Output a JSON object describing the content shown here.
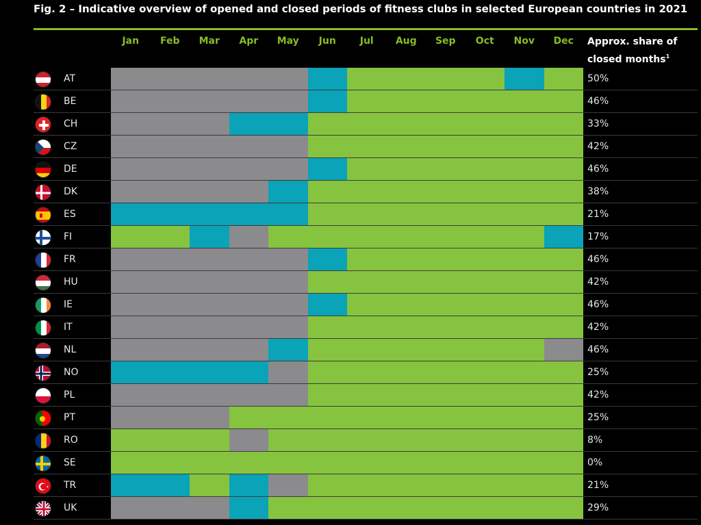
{
  "chart_data": {
    "type": "heatmap",
    "title": "Fig. 2 – Indicative overview of opened and closed periods of fitness clubs in selected European countries in 2021",
    "months": [
      "Jan",
      "Feb",
      "Mar",
      "Apr",
      "May",
      "Jun",
      "Jul",
      "Aug",
      "Sep",
      "Oct",
      "Nov",
      "Dec"
    ],
    "share_header_line1": "Approx. share of",
    "share_header_line2": "closed months",
    "share_header_note": "1",
    "status_colors": {
      "closed": "#8b8b8d",
      "partially_open": "#0aa3b8",
      "open": "#86c440"
    },
    "countries": [
      {
        "code": "AT",
        "flag": "at",
        "share": "50%",
        "segments": [
          [
            "closed",
            0,
            5
          ],
          [
            "partially_open",
            5,
            6
          ],
          [
            "open",
            6,
            10
          ],
          [
            "partially_open",
            10,
            11
          ],
          [
            "open",
            11,
            12
          ]
        ]
      },
      {
        "code": "BE",
        "flag": "be",
        "share": "46%",
        "segments": [
          [
            "closed",
            0,
            5
          ],
          [
            "partially_open",
            5,
            6
          ],
          [
            "open",
            6,
            12
          ]
        ]
      },
      {
        "code": "CH",
        "flag": "ch",
        "share": "33%",
        "segments": [
          [
            "closed",
            0,
            3
          ],
          [
            "partially_open",
            3,
            5
          ],
          [
            "open",
            5,
            12
          ]
        ]
      },
      {
        "code": "CZ",
        "flag": "cz",
        "share": "42%",
        "segments": [
          [
            "closed",
            0,
            5
          ],
          [
            "open",
            5,
            12
          ]
        ]
      },
      {
        "code": "DE",
        "flag": "de",
        "share": "46%",
        "segments": [
          [
            "closed",
            0,
            5
          ],
          [
            "partially_open",
            5,
            6
          ],
          [
            "open",
            6,
            12
          ]
        ]
      },
      {
        "code": "DK",
        "flag": "dk",
        "share": "38%",
        "segments": [
          [
            "closed",
            0,
            4
          ],
          [
            "partially_open",
            4,
            5
          ],
          [
            "open",
            5,
            12
          ]
        ]
      },
      {
        "code": "ES",
        "flag": "es",
        "share": "21%",
        "segments": [
          [
            "partially_open",
            0,
            5
          ],
          [
            "open",
            5,
            12
          ]
        ]
      },
      {
        "code": "FI",
        "flag": "fi",
        "share": "17%",
        "segments": [
          [
            "open",
            0,
            2
          ],
          [
            "partially_open",
            2,
            3
          ],
          [
            "closed",
            3,
            4
          ],
          [
            "open",
            4,
            11
          ],
          [
            "partially_open",
            11,
            12
          ]
        ]
      },
      {
        "code": "FR",
        "flag": "fr",
        "share": "46%",
        "segments": [
          [
            "closed",
            0,
            5
          ],
          [
            "partially_open",
            5,
            6
          ],
          [
            "open",
            6,
            12
          ]
        ]
      },
      {
        "code": "HU",
        "flag": "hu",
        "share": "42%",
        "segments": [
          [
            "closed",
            0,
            5
          ],
          [
            "open",
            5,
            12
          ]
        ]
      },
      {
        "code": "IE",
        "flag": "ie",
        "share": "46%",
        "segments": [
          [
            "closed",
            0,
            5
          ],
          [
            "partially_open",
            5,
            6
          ],
          [
            "open",
            6,
            12
          ]
        ]
      },
      {
        "code": "IT",
        "flag": "it",
        "share": "42%",
        "segments": [
          [
            "closed",
            0,
            5
          ],
          [
            "open",
            5,
            12
          ]
        ]
      },
      {
        "code": "NL",
        "flag": "nl",
        "share": "46%",
        "segments": [
          [
            "closed",
            0,
            4
          ],
          [
            "partially_open",
            4,
            5
          ],
          [
            "open",
            5,
            11
          ],
          [
            "closed",
            11,
            12
          ]
        ]
      },
      {
        "code": "NO",
        "flag": "no",
        "share": "25%",
        "segments": [
          [
            "partially_open",
            0,
            4
          ],
          [
            "closed",
            4,
            5
          ],
          [
            "open",
            5,
            12
          ]
        ]
      },
      {
        "code": "PL",
        "flag": "pl",
        "share": "42%",
        "segments": [
          [
            "closed",
            0,
            5
          ],
          [
            "open",
            5,
            12
          ]
        ]
      },
      {
        "code": "PT",
        "flag": "pt",
        "share": "25%",
        "segments": [
          [
            "closed",
            0,
            3
          ],
          [
            "open",
            3,
            12
          ]
        ]
      },
      {
        "code": "RO",
        "flag": "ro",
        "share": "8%",
        "segments": [
          [
            "open",
            0,
            3
          ],
          [
            "closed",
            3,
            4
          ],
          [
            "open",
            4,
            12
          ]
        ]
      },
      {
        "code": "SE",
        "flag": "se",
        "share": "0%",
        "segments": [
          [
            "open",
            0,
            12
          ]
        ]
      },
      {
        "code": "TR",
        "flag": "tr",
        "share": "21%",
        "segments": [
          [
            "partially_open",
            0,
            2
          ],
          [
            "open",
            2,
            3
          ],
          [
            "partially_open",
            3,
            4
          ],
          [
            "closed",
            4,
            5
          ],
          [
            "open",
            5,
            12
          ]
        ]
      },
      {
        "code": "UK",
        "flag": "uk",
        "share": "29%",
        "segments": [
          [
            "closed",
            0,
            3
          ],
          [
            "partially_open",
            3,
            4
          ],
          [
            "open",
            4,
            12
          ]
        ]
      }
    ]
  }
}
